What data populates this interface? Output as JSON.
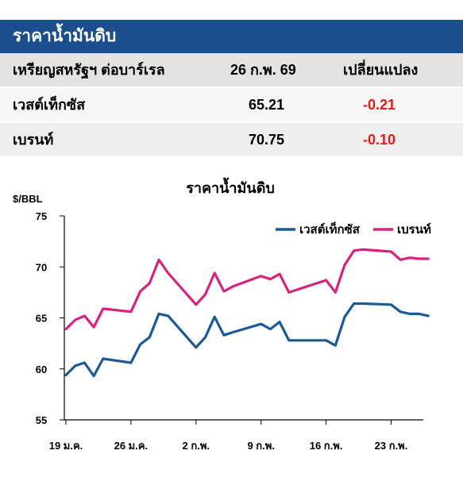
{
  "table": {
    "title": "ราคาน้ำมันดิบ",
    "headers": [
      "เหรียญสหรัฐฯ ต่อบาร์เรล",
      "26 ก.พ. 69",
      "เปลี่ยนแปลง"
    ],
    "rows": [
      {
        "name": "เวสต์เท็กซัส",
        "price": "65.21",
        "change": "-0.21"
      },
      {
        "name": "เบรนท์",
        "price": "70.75",
        "change": "-0.10"
      }
    ],
    "change_color": "#e21b1b",
    "header_bg": "#1a4e8c"
  },
  "chart_data": {
    "type": "line",
    "title": "ราคาน้ำมันดิบ",
    "ylabel": "$/BBL",
    "ylim": [
      55,
      75
    ],
    "yticks": [
      55,
      60,
      65,
      70,
      75
    ],
    "xticks": [
      "19 ม.ค.",
      "26 ม.ค.",
      "2 ก.พ.",
      "9 ก.พ.",
      "16 ก.พ.",
      "23 ก.พ."
    ],
    "legend_position": "top-right",
    "grid": false,
    "x": [
      0,
      1,
      2,
      3,
      4,
      7,
      8,
      9,
      10,
      11,
      14,
      15,
      16,
      17,
      18,
      21,
      22,
      23,
      24,
      25,
      28,
      29,
      30,
      31,
      32,
      35,
      36,
      37,
      38,
      39
    ],
    "x_reference": "day index from 19 ม.ค. (0 = 19 ม.ค.)",
    "series": [
      {
        "name": "เวสต์เท็กซัส",
        "color": "#1a5a96",
        "values": [
          59.4,
          60.3,
          60.6,
          59.3,
          61.0,
          60.6,
          62.4,
          63.1,
          65.4,
          65.2,
          62.1,
          63.1,
          65.1,
          63.3,
          63.6,
          64.4,
          63.9,
          64.6,
          62.8,
          62.8,
          62.8,
          62.3,
          65.1,
          66.4,
          66.4,
          66.3,
          65.6,
          65.4,
          65.4,
          65.2
        ]
      },
      {
        "name": "เบรนท์",
        "color": "#d6247f",
        "values": [
          63.9,
          64.8,
          65.2,
          64.1,
          65.9,
          65.6,
          67.6,
          68.4,
          70.7,
          69.4,
          66.3,
          67.3,
          69.4,
          67.6,
          68.1,
          69.1,
          68.8,
          69.3,
          67.5,
          67.8,
          68.7,
          67.5,
          70.2,
          71.6,
          71.7,
          71.5,
          70.7,
          70.9,
          70.8,
          70.8
        ]
      }
    ]
  }
}
